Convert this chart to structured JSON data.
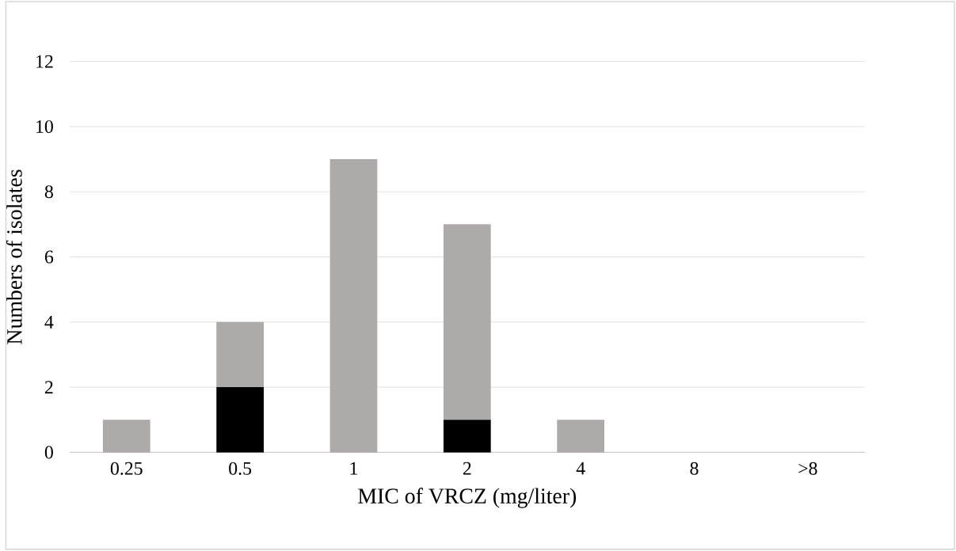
{
  "chart_data": {
    "type": "bar",
    "stacked": true,
    "xlabel": "MIC of VRCZ (mg/liter)",
    "ylabel": "Numbers of isolates",
    "categories": [
      "0.25",
      "0.5",
      "1",
      "2",
      "4",
      "8",
      ">8"
    ],
    "series": [
      {
        "color": "#000000",
        "values": [
          0,
          2,
          0,
          1,
          0,
          0,
          0
        ]
      },
      {
        "color": "#aeaaaa",
        "values": [
          1,
          2,
          9,
          6,
          1,
          0,
          0
        ]
      }
    ],
    "ylim": [
      0,
      12
    ],
    "yticks": [
      0,
      2,
      4,
      6,
      8,
      10,
      12
    ],
    "grid": "y"
  }
}
